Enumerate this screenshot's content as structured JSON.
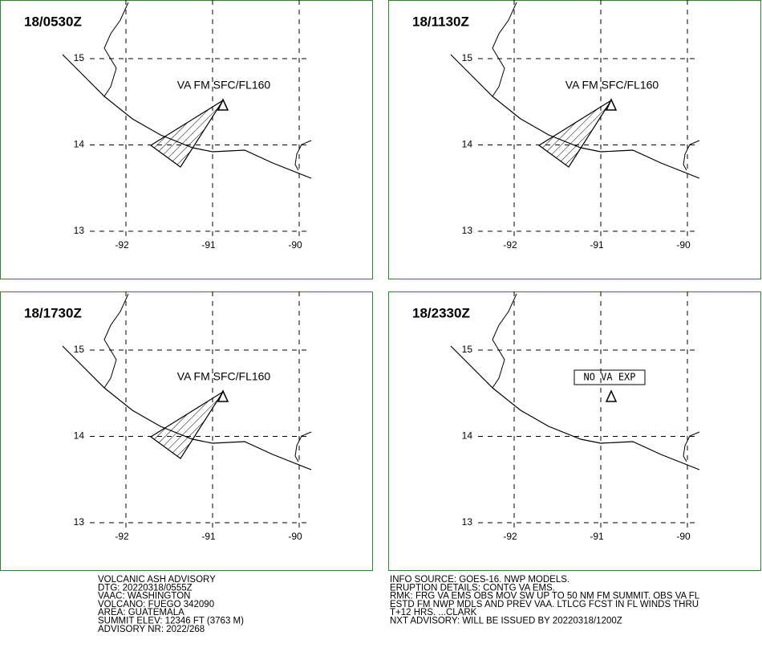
{
  "panels": [
    {
      "time": "18/0530Z",
      "label": "VA FM SFC/FL160",
      "ash_cloud": true
    },
    {
      "time": "18/1130Z",
      "label": "VA FM SFC/FL160",
      "ash_cloud": true
    },
    {
      "time": "18/1730Z",
      "label": "VA FM SFC/FL160",
      "ash_cloud": true
    },
    {
      "time": "18/2330Z",
      "label": "NO VA EXP",
      "ash_cloud": false
    }
  ],
  "lat_ticks": [
    15,
    14,
    13
  ],
  "lon_ticks": [
    -92,
    -91,
    -90
  ],
  "footer": {
    "left": [
      "VOLCANIC ASH ADVISORY",
      "DTG: 20220318/0555Z",
      "VAAC: WASHINGTON",
      "VOLCANO: FUEGO 342090",
      "AREA: GUATEMALA",
      "SUMMIT ELEV: 12346 FT (3763 M)",
      "ADVISORY NR: 2022/268"
    ],
    "right": [
      "INFO SOURCE: GOES-16. NWP MODELS.",
      "ERUPTION DETAILS: CONTG VA EMS.",
      "RMK: FRG VA EMS OBS MOV SW UP TO 50 NM FM SUMMIT. OBS VA FL",
      "ESTD FM NWP MDLS AND PREV VAA. LTLCG FCST IN FL WINDS THRU",
      "T+12 HRS. ...CLARK",
      "NXT ADVISORY: WILL BE ISSUED BY 20220318/1200Z"
    ]
  }
}
